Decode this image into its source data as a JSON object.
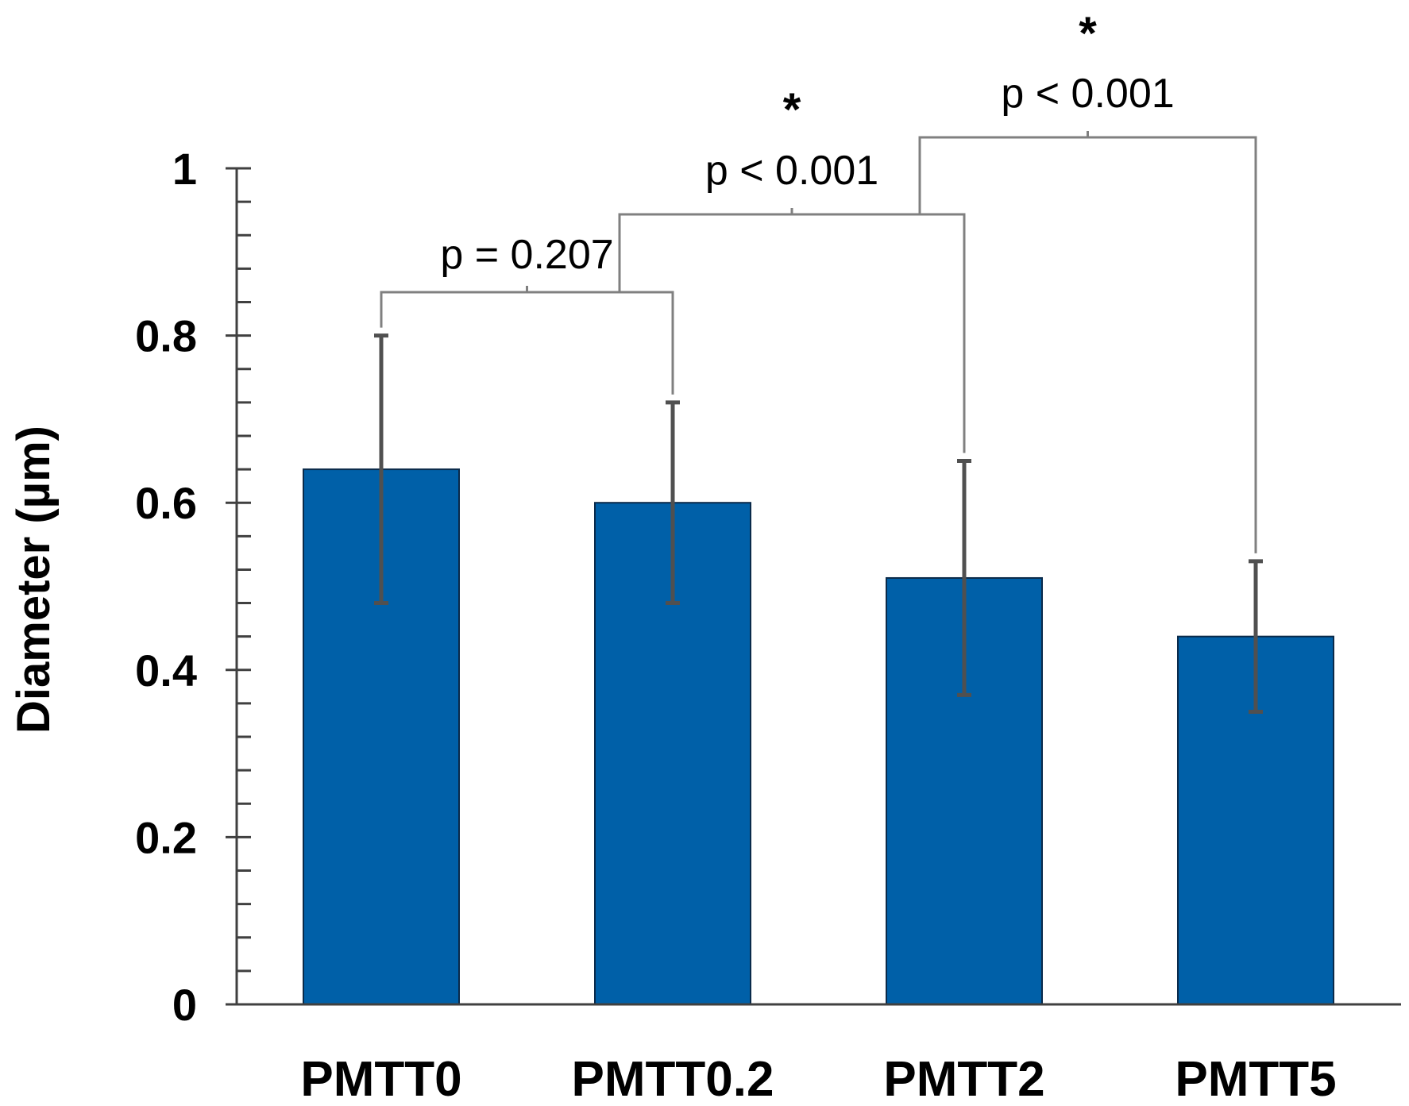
{
  "chart_data": {
    "type": "bar",
    "title": "",
    "xlabel": "",
    "ylabel": "Diameter (µm)",
    "ylim": [
      0,
      1
    ],
    "yticks": [
      "0",
      "0.2",
      "0.4",
      "0.6",
      "0.8",
      "1"
    ],
    "categories": [
      "PMTT0",
      "PMTT0.2",
      "PMTT2",
      "PMTT5"
    ],
    "values": [
      0.64,
      0.6,
      0.51,
      0.44
    ],
    "error_upper": [
      0.8,
      0.72,
      0.65,
      0.53
    ],
    "error_lower": [
      0.48,
      0.48,
      0.37,
      0.35
    ],
    "bar_color": "#0060A8",
    "error_color": "#505050",
    "bracket_color": "#808080",
    "comparisons": [
      {
        "between": [
          "PMTT0",
          "PMTT0.2"
        ],
        "label": "p = 0.207",
        "star": ""
      },
      {
        "between": [
          "PMTT0.2",
          "PMTT2"
        ],
        "label": "p < 0.001",
        "star": "*"
      },
      {
        "between": [
          "PMTT2",
          "PMTT5"
        ],
        "label": "p < 0.001",
        "star": "*"
      }
    ]
  }
}
